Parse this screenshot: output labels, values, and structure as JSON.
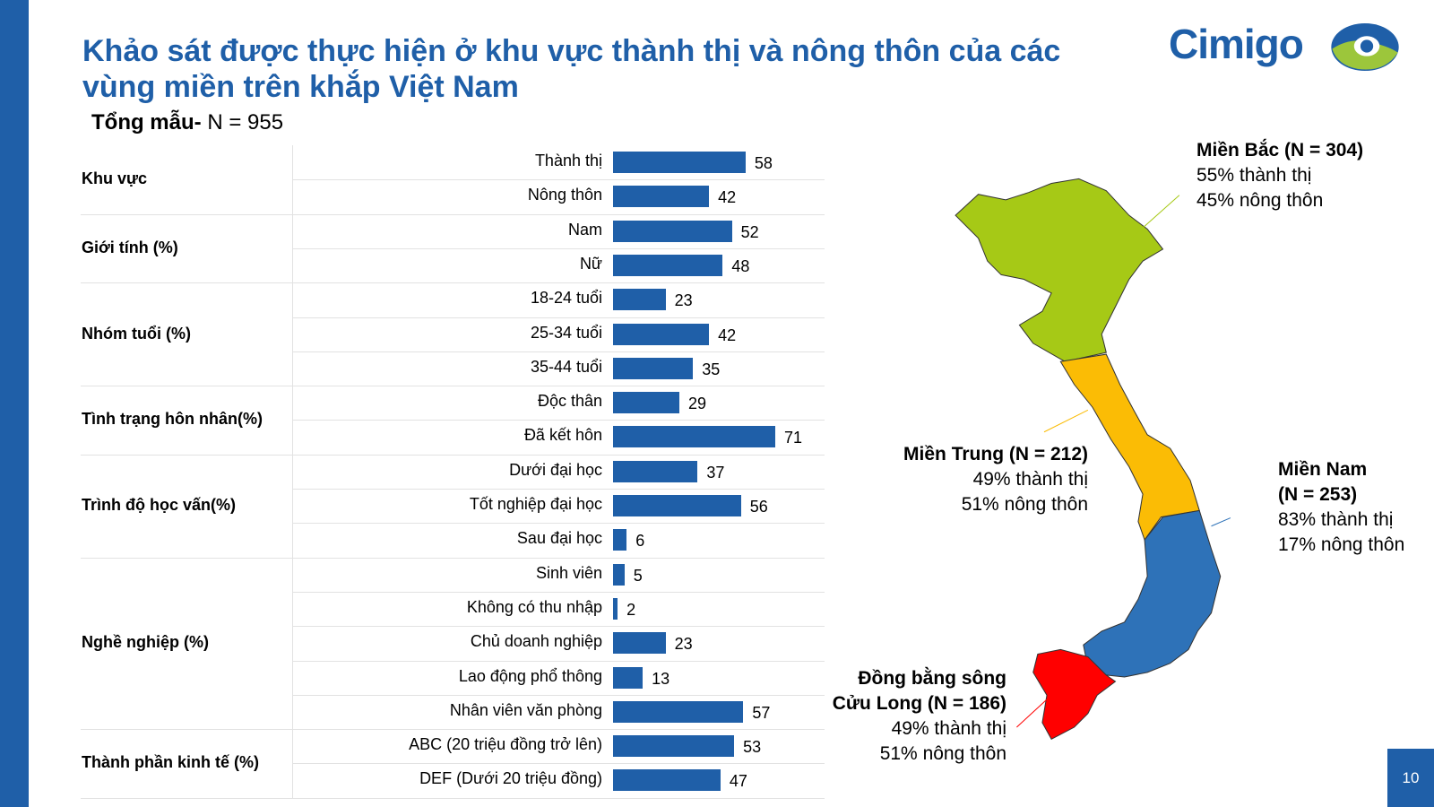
{
  "header": {
    "title": "Khảo sát được thực hiện ở khu vực thành thị và nông thôn của các vùng miền trên khắp Việt Nam",
    "sample_label": "Tổng mẫu-",
    "sample_value": "N = 955"
  },
  "logo": {
    "text": "Cimigo"
  },
  "page_number": "10",
  "colors": {
    "brand": "#1f5fa8",
    "north": "#a6c916",
    "central": "#fbbc05",
    "south": "#2e72b8",
    "mekong": "#ff0000"
  },
  "chart_data": {
    "type": "bar",
    "orientation": "horizontal",
    "unit": "%",
    "xlim": [
      0,
      75
    ],
    "groups": [
      {
        "label": "Khu vực",
        "items": [
          {
            "label": "Thành thị",
            "value": 58
          },
          {
            "label": "Nông thôn",
            "value": 42
          }
        ]
      },
      {
        "label": "Giới tính (%)",
        "items": [
          {
            "label": "Nam",
            "value": 52
          },
          {
            "label": "Nữ",
            "value": 48
          }
        ]
      },
      {
        "label": "Nhóm tuổi (%)",
        "items": [
          {
            "label": "18-24 tuổi",
            "value": 23
          },
          {
            "label": "25-34 tuổi",
            "value": 42
          },
          {
            "label": "35-44 tuổi",
            "value": 35
          }
        ]
      },
      {
        "label": "Tình trạng hôn nhân(%)",
        "items": [
          {
            "label": "Độc thân",
            "value": 29
          },
          {
            "label": "Đã kết hôn",
            "value": 71
          }
        ]
      },
      {
        "label": "Trình độ học vấn(%)",
        "items": [
          {
            "label": "Dưới đại học",
            "value": 37
          },
          {
            "label": "Tốt nghiệp đại học",
            "value": 56
          },
          {
            "label": "Sau đại học",
            "value": 6
          }
        ]
      },
      {
        "label": "Nghề nghiệp (%)",
        "items": [
          {
            "label": "Sinh viên",
            "value": 5
          },
          {
            "label": "Không có thu nhập",
            "value": 2
          },
          {
            "label": "Chủ doanh nghiệp",
            "value": 23
          },
          {
            "label": "Lao động phổ thông",
            "value": 13
          },
          {
            "label": "Nhân viên văn phòng",
            "value": 57
          }
        ]
      },
      {
        "label": "Thành phần kinh tế (%)",
        "items": [
          {
            "label": "ABC (20 triệu đồng trở lên)",
            "value": 53
          },
          {
            "label": "DEF (Dưới 20 triệu đồng)",
            "value": 47
          }
        ]
      }
    ]
  },
  "regions": {
    "north": {
      "name": "Miền Bắc (N = 304)",
      "urban": "55% thành thị",
      "rural": "45% nông thôn"
    },
    "central": {
      "name": "Miền Trung (N = 212)",
      "urban": "49% thành thị",
      "rural": "51% nông thôn"
    },
    "south": {
      "name1": "Miền Nam",
      "name2": "(N = 253)",
      "urban": "83% thành thị",
      "rural": "17% nông thôn"
    },
    "mekong": {
      "name1": "Đồng bằng sông",
      "name2": "Cửu Long (N = 186)",
      "urban": "49% thành thị",
      "rural": "51% nông thôn"
    }
  }
}
